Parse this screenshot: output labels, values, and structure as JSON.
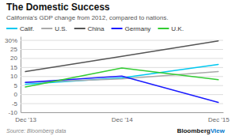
{
  "chart_data": {
    "type": "line",
    "title": "The Domestic Success",
    "subtitle": "California's GDP change from 2012, compared to nations.",
    "source": "Source: Bloomberg data",
    "annotations": [
      {
        "text": "Bloomberg",
        "color": "#111111"
      },
      {
        "text": "View",
        "color": "#0077cc"
      }
    ],
    "categories": [
      "Dec '13",
      "Dec '14",
      "Dec '15"
    ],
    "series": [
      {
        "name": "Calif.",
        "color": "#00c8f0",
        "values": [
          5.5,
          9.0,
          16.5
        ]
      },
      {
        "name": "U.S.",
        "color": "#aaaaaa",
        "values": [
          6.5,
          8.5,
          12.5
        ]
      },
      {
        "name": "China",
        "color": "#555555",
        "values": [
          12.5,
          21.0,
          29.5
        ]
      },
      {
        "name": "Germany",
        "color": "#1a1aff",
        "values": [
          6.5,
          10.0,
          -4.5
        ]
      },
      {
        "name": "U.K.",
        "color": "#33cc33",
        "values": [
          4.0,
          14.5,
          8.0
        ]
      }
    ],
    "ylim": [
      -10,
      32
    ],
    "yticks": [
      -10,
      -5,
      0,
      5,
      10,
      15,
      20,
      25,
      {
        "value": 30,
        "label": "30%"
      }
    ],
    "grid": true,
    "legend": "top-left"
  }
}
